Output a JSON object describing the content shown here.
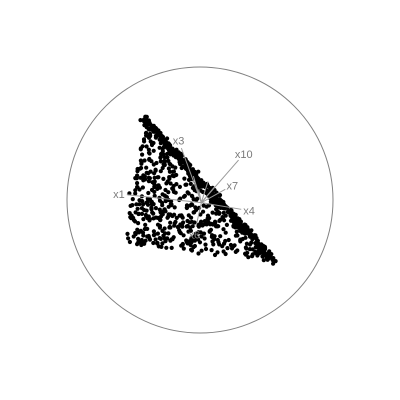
{
  "chart_data": {
    "type": "scatter",
    "title": "",
    "description_type": "tour projection",
    "boundary": "circle",
    "colors": {
      "points": "#000000",
      "circle": "#808080",
      "axes": "#9a9a9a",
      "labels": "#7a7a7a"
    },
    "shape": {
      "vertices": [
        [
          -0.4,
          0.63
        ],
        [
          -0.58,
          -0.33
        ],
        [
          0.58,
          -0.45
        ]
      ],
      "n_points": 900
    },
    "projection_axes": [
      {
        "label": "x1",
        "dx": -0.56,
        "dy": 0.06
      },
      {
        "label": "x3",
        "dx": -0.15,
        "dy": 0.41
      },
      {
        "label": "x10",
        "dx": 0.28,
        "dy": 0.32
      },
      {
        "label": "x7",
        "dx": 0.18,
        "dy": 0.1
      },
      {
        "label": "x4",
        "dx": 0.3,
        "dy": -0.05
      },
      {
        "label": "x6",
        "dx": -0.04,
        "dy": -0.18
      },
      {
        "label": "",
        "dx": -0.06,
        "dy": 0.2
      },
      {
        "label": "",
        "dx": 0.05,
        "dy": 0.16
      },
      {
        "label": "",
        "dx": 0.1,
        "dy": 0.12
      },
      {
        "label": "",
        "dx": -0.02,
        "dy": 0.1
      }
    ],
    "xlim": [
      -1,
      1
    ],
    "ylim": [
      -1,
      1
    ],
    "grid": false,
    "legend": "none"
  }
}
